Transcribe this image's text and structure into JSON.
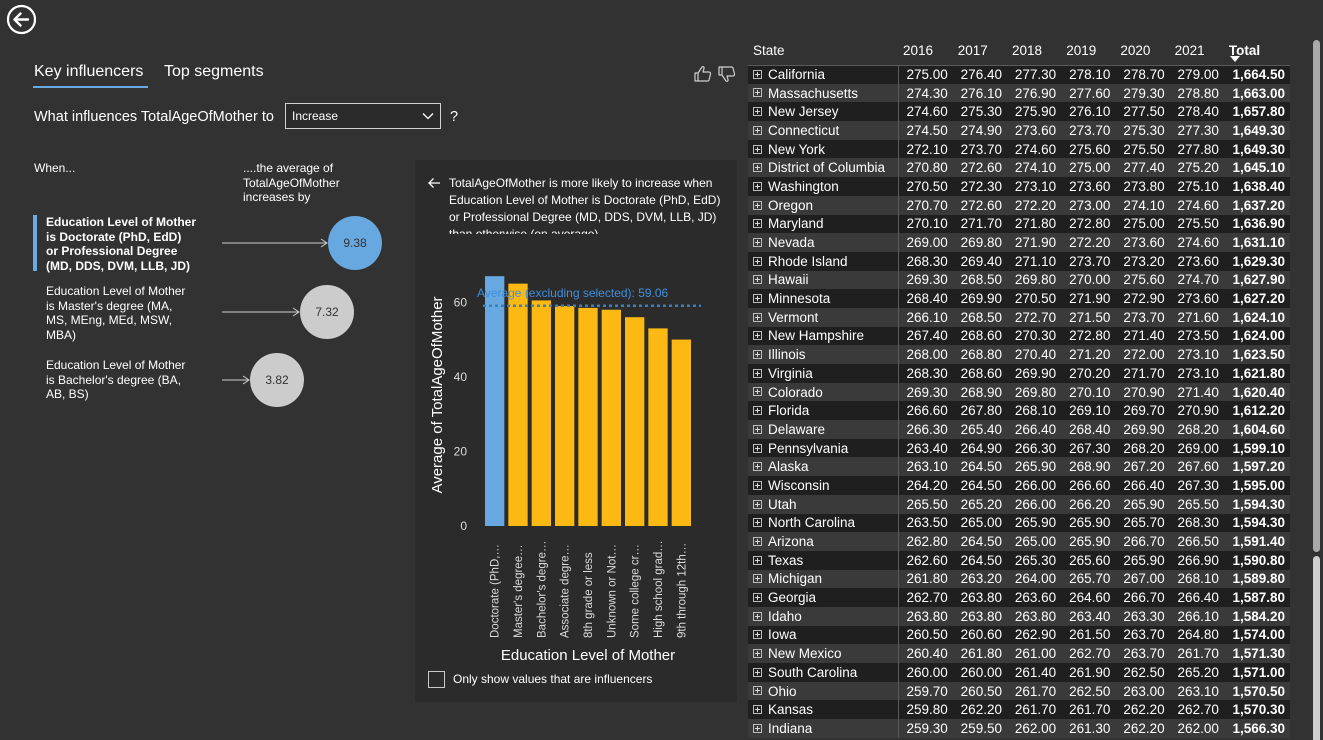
{
  "nav": {
    "back_icon": "back-arrow-icon"
  },
  "tabs": [
    {
      "label": "Key influencers",
      "active": true
    },
    {
      "label": "Top segments",
      "active": false
    }
  ],
  "feedback": {
    "like_icon": "thumbs-up-icon",
    "dislike_icon": "thumbs-down-icon"
  },
  "question": {
    "prefix": "What influences TotalAgeOfMother to",
    "dropdown_value": "Increase",
    "suffix": "?"
  },
  "columns": {
    "when": "When...",
    "avg_line1": "....the average of",
    "avg_line2": "TotalAgeOfMother",
    "avg_line3": "increases by"
  },
  "influencers": [
    {
      "lines": [
        "Education Level of Mother",
        "is Doctorate (PhD, EdD)",
        "or Professional Degree",
        "(MD, DDS, DVM, LLB, JD)"
      ],
      "value": "9.38",
      "selected": true
    },
    {
      "lines": [
        "Education Level of Mother",
        "is Master's degree (MA,",
        "MS, MEng, MEd, MSW,",
        "MBA)"
      ],
      "value": "7.32",
      "selected": false
    },
    {
      "lines": [
        "Education Level of Mother",
        "is Bachelor's degree (BA,",
        "AB, BS)"
      ],
      "value": "3.82",
      "selected": false
    }
  ],
  "detail": {
    "description": "TotalAgeOfMother is more likely to increase when Education Level of Mother is Doctorate (PhD, EdD) or Professional Degree (MD, DDS, DVM, LLB, JD) than otherwise (on average).",
    "checkbox_label": "Only show values that are influencers"
  },
  "chart_data": {
    "type": "bar",
    "title": "",
    "xlabel": "Education Level of Mother",
    "ylabel": "Average of TotalAgeOfMother",
    "ylim": [
      0,
      70
    ],
    "yticks": [
      0,
      20,
      40,
      60
    ],
    "categories": [
      "Doctorate (PhD,…",
      "Master's degree…",
      "Bachelor's degre…",
      "Associate degre…",
      "8th grade or less",
      "Unknown or Not…",
      "Some college cr…",
      "High school grad…",
      "9th through 12th…"
    ],
    "values": [
      67,
      65,
      60.5,
      59,
      58.5,
      58,
      56,
      53,
      50
    ],
    "highlight_index": 0,
    "highlight_color": "#68a8e0",
    "bar_color": "#fdb913",
    "reference_line": {
      "label": "Average (excluding selected): 59.06",
      "value": 59.06,
      "color": "#3a7fc1"
    }
  },
  "table": {
    "headers": [
      "State",
      "2016",
      "2017",
      "2018",
      "2019",
      "2020",
      "2021",
      "Total"
    ],
    "rows": [
      [
        "California",
        "275.00",
        "276.40",
        "277.30",
        "278.10",
        "278.70",
        "279.00",
        "1,664.50"
      ],
      [
        "Massachusetts",
        "274.30",
        "276.10",
        "276.90",
        "277.60",
        "279.30",
        "278.80",
        "1,663.00"
      ],
      [
        "New Jersey",
        "274.60",
        "275.30",
        "275.90",
        "276.10",
        "277.50",
        "278.40",
        "1,657.80"
      ],
      [
        "Connecticut",
        "274.50",
        "274.90",
        "273.60",
        "273.70",
        "275.30",
        "277.30",
        "1,649.30"
      ],
      [
        "New York",
        "272.10",
        "273.70",
        "274.60",
        "275.60",
        "275.50",
        "277.80",
        "1,649.30"
      ],
      [
        "District of Columbia",
        "270.80",
        "272.60",
        "274.10",
        "275.00",
        "277.40",
        "275.20",
        "1,645.10"
      ],
      [
        "Washington",
        "270.50",
        "272.30",
        "273.10",
        "273.60",
        "273.80",
        "275.10",
        "1,638.40"
      ],
      [
        "Oregon",
        "270.70",
        "272.60",
        "272.20",
        "273.00",
        "274.10",
        "274.60",
        "1,637.20"
      ],
      [
        "Maryland",
        "270.10",
        "271.70",
        "271.80",
        "272.80",
        "275.00",
        "275.50",
        "1,636.90"
      ],
      [
        "Nevada",
        "269.00",
        "269.80",
        "271.90",
        "272.20",
        "273.60",
        "274.60",
        "1,631.10"
      ],
      [
        "Rhode Island",
        "268.30",
        "269.40",
        "271.10",
        "273.70",
        "273.20",
        "273.60",
        "1,629.30"
      ],
      [
        "Hawaii",
        "269.30",
        "268.50",
        "269.80",
        "270.00",
        "275.60",
        "274.70",
        "1,627.90"
      ],
      [
        "Minnesota",
        "268.40",
        "269.90",
        "270.50",
        "271.90",
        "272.90",
        "273.60",
        "1,627.20"
      ],
      [
        "Vermont",
        "266.10",
        "268.50",
        "272.70",
        "271.50",
        "273.70",
        "271.60",
        "1,624.10"
      ],
      [
        "New Hampshire",
        "267.40",
        "268.60",
        "270.30",
        "272.80",
        "271.40",
        "273.50",
        "1,624.00"
      ],
      [
        "Illinois",
        "268.00",
        "268.80",
        "270.40",
        "271.20",
        "272.00",
        "273.10",
        "1,623.50"
      ],
      [
        "Virginia",
        "268.30",
        "268.60",
        "269.90",
        "270.20",
        "271.70",
        "273.10",
        "1,621.80"
      ],
      [
        "Colorado",
        "269.30",
        "268.90",
        "269.80",
        "270.10",
        "270.90",
        "271.40",
        "1,620.40"
      ],
      [
        "Florida",
        "266.60",
        "267.80",
        "268.10",
        "269.10",
        "269.70",
        "270.90",
        "1,612.20"
      ],
      [
        "Delaware",
        "266.30",
        "265.40",
        "266.40",
        "268.40",
        "269.90",
        "268.20",
        "1,604.60"
      ],
      [
        "Pennsylvania",
        "263.40",
        "264.90",
        "266.30",
        "267.30",
        "268.20",
        "269.00",
        "1,599.10"
      ],
      [
        "Alaska",
        "263.10",
        "264.50",
        "265.90",
        "268.90",
        "267.20",
        "267.60",
        "1,597.20"
      ],
      [
        "Wisconsin",
        "264.20",
        "264.50",
        "266.00",
        "266.60",
        "266.40",
        "267.30",
        "1,595.00"
      ],
      [
        "Utah",
        "265.50",
        "265.20",
        "266.00",
        "266.20",
        "265.90",
        "265.50",
        "1,594.30"
      ],
      [
        "North Carolina",
        "263.50",
        "265.00",
        "265.90",
        "265.90",
        "265.70",
        "268.30",
        "1,594.30"
      ],
      [
        "Arizona",
        "262.80",
        "264.50",
        "265.00",
        "265.90",
        "266.70",
        "266.50",
        "1,591.40"
      ],
      [
        "Texas",
        "262.60",
        "264.50",
        "265.30",
        "265.60",
        "265.90",
        "266.90",
        "1,590.80"
      ],
      [
        "Michigan",
        "261.80",
        "263.20",
        "264.00",
        "265.70",
        "267.00",
        "268.10",
        "1,589.80"
      ],
      [
        "Georgia",
        "262.70",
        "263.80",
        "263.60",
        "264.60",
        "266.70",
        "266.40",
        "1,587.80"
      ],
      [
        "Idaho",
        "263.80",
        "263.80",
        "263.80",
        "263.40",
        "263.30",
        "266.10",
        "1,584.20"
      ],
      [
        "Iowa",
        "260.50",
        "260.60",
        "262.90",
        "261.50",
        "263.70",
        "264.80",
        "1,574.00"
      ],
      [
        "New Mexico",
        "260.40",
        "261.80",
        "261.00",
        "262.70",
        "263.70",
        "261.70",
        "1,571.30"
      ],
      [
        "South Carolina",
        "260.00",
        "260.00",
        "261.40",
        "261.90",
        "262.50",
        "265.20",
        "1,571.00"
      ],
      [
        "Ohio",
        "259.70",
        "260.50",
        "261.70",
        "262.50",
        "263.00",
        "263.10",
        "1,570.50"
      ],
      [
        "Kansas",
        "259.80",
        "262.20",
        "261.70",
        "261.70",
        "262.20",
        "262.70",
        "1,570.30"
      ],
      [
        "Indiana",
        "259.30",
        "259.50",
        "262.00",
        "261.30",
        "262.20",
        "262.00",
        "1,566.30"
      ]
    ]
  }
}
